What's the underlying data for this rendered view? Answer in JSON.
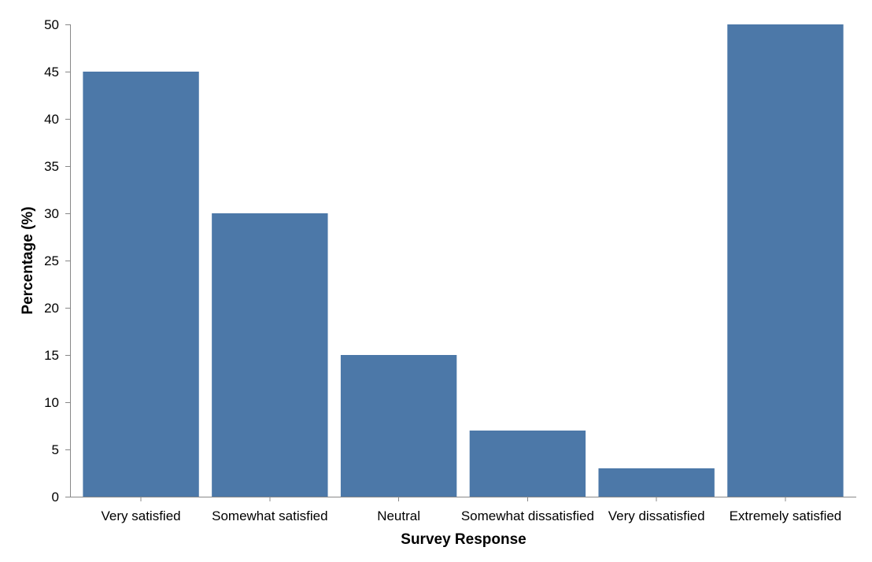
{
  "chart_data": {
    "type": "bar",
    "categories": [
      "Very satisfied",
      "Somewhat satisfied",
      "Neutral",
      "Somewhat dissatisfied",
      "Very dissatisfied",
      "Extremely satisfied"
    ],
    "values": [
      45,
      30,
      15,
      7,
      3,
      50
    ],
    "xlabel": "Survey Response",
    "ylabel": "Percentage (%)",
    "ylim": [
      0,
      50
    ],
    "yticks": [
      0,
      5,
      10,
      15,
      20,
      25,
      30,
      35,
      40,
      45,
      50
    ],
    "grid": false,
    "bar_color": "#4c78a8"
  }
}
